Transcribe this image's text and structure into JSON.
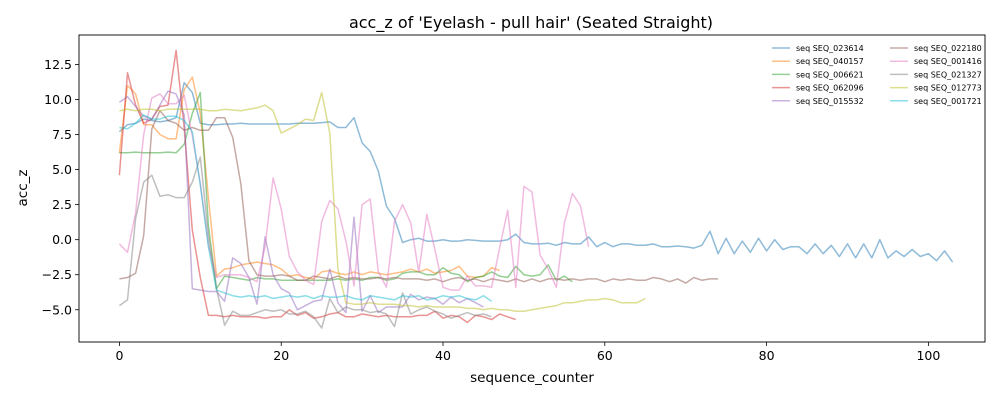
{
  "chart_data": {
    "type": "line",
    "title": "acc_z of 'Eyelash - pull hair' (Seated Straight)",
    "xlabel": "sequence_counter",
    "ylabel": "acc_z",
    "xlim": [
      -5,
      107
    ],
    "ylim": [
      -7.3,
      14.6
    ],
    "xticks": [
      0,
      20,
      40,
      60,
      80,
      100
    ],
    "yticks": [
      -5.0,
      -2.5,
      0.0,
      2.5,
      5.0,
      7.5,
      10.0,
      12.5
    ],
    "ytick_labels": [
      "−5.0",
      "−2.5",
      "0.0",
      "2.5",
      "5.0",
      "7.5",
      "10.0",
      "12.5"
    ],
    "grid": false,
    "legend_position": "top-right",
    "series": [
      {
        "name": "seq SEQ_023614",
        "color": "#1f77b4",
        "x0": 0,
        "values": [
          7.7,
          8.2,
          8.3,
          8.6,
          8.5,
          8.4,
          8.5,
          8.7,
          11.2,
          10.5,
          8.3,
          8.2,
          8.2,
          8.25,
          8.25,
          8.3,
          8.25,
          8.25,
          8.25,
          8.25,
          8.25,
          8.25,
          8.3,
          8.3,
          8.3,
          8.35,
          8.4,
          8.0,
          8.0,
          8.7,
          6.9,
          6.3,
          4.9,
          2.4,
          1.5,
          -0.2,
          0.0,
          0.1,
          -0.1,
          -0.1,
          0.0,
          -0.1,
          -0.1,
          0.0,
          -0.05,
          -0.1,
          -0.1,
          -0.1,
          0.0,
          0.4,
          -0.2,
          -0.3,
          -0.3,
          -0.25,
          -0.4,
          -0.2,
          -0.3,
          -0.3,
          0.2,
          -0.5,
          -0.2,
          -0.5,
          -0.3,
          -0.3,
          -0.4,
          -0.4,
          -0.3,
          -0.5,
          -0.5,
          -0.45,
          -0.5,
          -0.6,
          -0.4,
          0.6,
          -1.0,
          0.1,
          -1.0,
          -0.1,
          -0.9,
          0.1,
          -0.8,
          0.0,
          -0.7,
          -0.5,
          -0.5,
          -1.0,
          -0.3,
          -1.0,
          -0.4,
          -1.2,
          -0.3,
          -1.3,
          -0.3,
          -1.3,
          0.0,
          -1.3,
          -0.8,
          -1.2,
          -0.7,
          -1.2,
          -1.0,
          -1.5,
          -0.8,
          -1.6
        ]
      },
      {
        "name": "seq SEQ_040157",
        "color": "#ff7f0e",
        "x0": 0,
        "values": [
          6.2,
          11.0,
          10.4,
          8.2,
          8.2,
          7.5,
          7.2,
          7.2,
          10.7,
          11.6,
          9.0,
          3.0,
          -2.6,
          -2.1,
          -2.0,
          -1.8,
          -1.7,
          -1.6,
          -1.7,
          -1.8,
          -2.1,
          -2.6,
          -2.5,
          -2.7,
          -2.8,
          -2.3,
          -2.2,
          -2.4,
          -2.5,
          -2.3,
          -2.5,
          -2.3,
          -2.4,
          -2.5,
          -2.4,
          -2.3,
          -2.1,
          -2.3,
          -2.1,
          -2.4,
          -2.3,
          -2.2,
          -1.9,
          -2.6,
          -2.7,
          -2.6,
          -2.0,
          -2.2
        ]
      },
      {
        "name": "seq SEQ_006621",
        "color": "#2ca02c",
        "x0": 0,
        "values": [
          6.2,
          6.2,
          6.25,
          6.2,
          6.2,
          6.2,
          6.25,
          6.2,
          6.8,
          9.0,
          10.5,
          1.0,
          -3.5,
          -2.6,
          -2.7,
          -2.8,
          -2.9,
          -2.7,
          -2.8,
          -2.8,
          -2.9,
          -2.9,
          -2.9,
          -2.9,
          -2.9,
          -2.9,
          -2.9,
          -2.8,
          -2.9,
          -2.8,
          -2.9,
          -2.7,
          -2.7,
          -2.9,
          -2.8,
          -2.4,
          -2.3,
          -2.3,
          -2.5,
          -2.5,
          -2.0,
          -2.4,
          -2.5,
          -3.0,
          -2.7,
          -2.6,
          -2.3,
          -2.6,
          -2.7,
          -1.9,
          -2.5,
          -2.6,
          -2.5,
          -1.8,
          -2.9,
          -2.6,
          -3.0
        ]
      },
      {
        "name": "seq SEQ_062096",
        "color": "#d62728",
        "x0": 0,
        "values": [
          4.6,
          11.9,
          9.6,
          8.3,
          8.6,
          9.5,
          9.6,
          13.5,
          8.0,
          0.7,
          -2.7,
          -5.4,
          -5.4,
          -5.5,
          -5.4,
          -5.5,
          -5.5,
          -5.5,
          -5.6,
          -5.5,
          -5.5,
          -5.0,
          -5.4,
          -5.2,
          -5.6,
          -5.5,
          -5.3,
          -5.2,
          -5.5,
          -5.5,
          -5.3,
          -5.4,
          -5.5,
          -5.4,
          -5.5,
          -5.5,
          -5.5,
          -5.4,
          -5.4,
          -5.1,
          -5.6,
          -5.4,
          -5.5,
          -5.9,
          -5.4,
          -5.5,
          -5.7,
          -5.3,
          -5.5,
          -5.7
        ]
      },
      {
        "name": "seq SEQ_015532",
        "color": "#9467bd",
        "x0": 0,
        "values": [
          9.8,
          10.2,
          9.5,
          8.8,
          8.6,
          9.6,
          10.6,
          10.4,
          8.9,
          -3.5,
          -3.6,
          -3.7,
          -3.7,
          -4.4,
          -1.3,
          -1.7,
          -2.7,
          -4.6,
          0.2,
          -2.5,
          -3.5,
          -3.8,
          -5.0,
          -4.7,
          -4.4,
          -4.3,
          -2.1,
          -4.5,
          -5.2,
          1.6,
          -5.1,
          -4.0,
          -5.2,
          -4.8,
          -4.8,
          -4.8,
          -3.9,
          -4.3,
          -4.1,
          -4.2,
          -4.6,
          -4.1,
          -4.5,
          -4.2,
          -4.5,
          -4.8
        ]
      },
      {
        "name": "seq SEQ_022180",
        "color": "#8c564b",
        "x0": 0,
        "values": [
          -2.8,
          -2.7,
          -2.4,
          0.3,
          7.9,
          9.2,
          8.5,
          8.3,
          7.8,
          8.0,
          7.8,
          7.8,
          8.7,
          8.7,
          7.3,
          4.0,
          -1.5,
          -2.5,
          -2.6,
          -2.6,
          -2.5,
          -2.6,
          -2.9,
          -2.9,
          -2.6,
          -2.7,
          -2.8,
          -2.6,
          -2.8,
          -2.7,
          -2.8,
          -2.8,
          -2.7,
          -2.8,
          -2.7,
          -2.8,
          -2.8,
          -2.8,
          -2.9,
          -2.8,
          -3.0,
          -2.8,
          -2.7,
          -2.9,
          -2.8,
          -3.0,
          -2.8,
          -2.9,
          -3.0,
          -2.8,
          -3.0,
          -2.8,
          -3.0,
          -2.8,
          -2.8,
          -2.9,
          -2.8,
          -2.9,
          -2.8,
          -2.8,
          -3.0,
          -2.8,
          -2.9,
          -2.8,
          -2.9,
          -2.9,
          -2.7,
          -2.8,
          -3.0,
          -2.8,
          -3.1,
          -2.7,
          -2.9,
          -2.8,
          -2.8
        ]
      },
      {
        "name": "seq SEQ_001416",
        "color": "#e377c2",
        "x0": 0,
        "values": [
          -0.3,
          -0.9,
          1.9,
          7.5,
          10.1,
          10.4,
          9.7,
          9.7,
          10.3,
          7.4,
          4.0,
          -0.4,
          -2.7,
          -2.5,
          -2.5,
          -2.5,
          -2.7,
          -3.0,
          -0.5,
          4.4,
          2.2,
          -1.2,
          -2.3,
          -2.9,
          -3.2,
          1.3,
          2.8,
          2.2,
          -0.1,
          -3.3,
          2.5,
          2.9,
          -2.3,
          -3.4,
          1.3,
          2.5,
          1.2,
          -2.3,
          1.8,
          -0.7,
          -3.4,
          -3.6,
          -3.6,
          -2.6,
          -3.3,
          -3.3,
          -3.4,
          -0.6,
          2.1,
          -3.4,
          3.8,
          3.4,
          -1.1,
          -2.1,
          -3.4,
          1.2,
          3.3,
          2.4,
          -0.5
        ]
      },
      {
        "name": "seq SEQ_021327",
        "color": "#7f7f7f",
        "x0": 0,
        "values": [
          -4.7,
          -4.3,
          1.5,
          4.1,
          4.6,
          3.1,
          3.2,
          3.0,
          3.0,
          4.1,
          5.9,
          0.3,
          -3.5,
          -6.1,
          -5.1,
          -5.4,
          -5.4,
          -5.2,
          -5.0,
          -5.1,
          -5.0,
          -5.3,
          -5.3,
          -5.1,
          -5.5,
          -6.3,
          -4.2,
          -5.2,
          -4.8,
          -5.0,
          -5.0,
          -5.2,
          -5.1,
          -5.3,
          -6.2,
          -3.8,
          -5.3,
          -5.0,
          -4.8,
          -5.1,
          -5.3,
          -5.6,
          -5.4,
          -5.2,
          -5.4,
          -5.3,
          -5.5
        ]
      },
      {
        "name": "seq SEQ_012773",
        "color": "#bcbd22",
        "x0": 0,
        "values": [
          9.2,
          9.3,
          9.2,
          9.3,
          9.3,
          9.2,
          9.3,
          9.3,
          9.3,
          9.3,
          9.3,
          9.2,
          9.2,
          9.3,
          9.25,
          9.2,
          9.3,
          9.4,
          9.6,
          9.2,
          7.6,
          7.9,
          8.2,
          8.6,
          8.5,
          10.5,
          7.6,
          -2.1,
          -4.5,
          -4.6,
          -4.6,
          -4.5,
          -4.6,
          -4.6,
          -4.6,
          -4.7,
          -4.7,
          -4.8,
          -4.7,
          -4.8,
          -4.8,
          -4.8,
          -4.8,
          -4.9,
          -4.9,
          -5.0,
          -4.9,
          -5.0,
          -5.0,
          -5.1,
          -5.1,
          -5.0,
          -4.9,
          -4.8,
          -4.7,
          -4.5,
          -4.5,
          -4.4,
          -4.3,
          -4.3,
          -4.2,
          -4.3,
          -4.5,
          -4.5,
          -4.5,
          -4.2
        ]
      },
      {
        "name": "seq SEQ_001721",
        "color": "#17becf",
        "x0": 0,
        "values": [
          8.0,
          7.9,
          8.3,
          8.9,
          8.6,
          8.6,
          8.8,
          8.8,
          8.5,
          7.7,
          3.9,
          -0.5,
          -3.6,
          -3.8,
          -4.0,
          -4.1,
          -4.0,
          -4.1,
          -4.0,
          -4.2,
          -4.1,
          -4.0,
          -4.1,
          -4.0,
          -4.2,
          -4.0,
          -4.1,
          -4.1,
          -4.0,
          -4.2,
          -4.3,
          -4.0,
          -4.1,
          -4.2,
          -4.3,
          -4.0,
          -4.1,
          -4.0,
          -4.3,
          -4.2,
          -4.0,
          -4.1,
          -4.0,
          -4.2,
          -4.3,
          -4.0,
          -4.4
        ]
      }
    ]
  }
}
